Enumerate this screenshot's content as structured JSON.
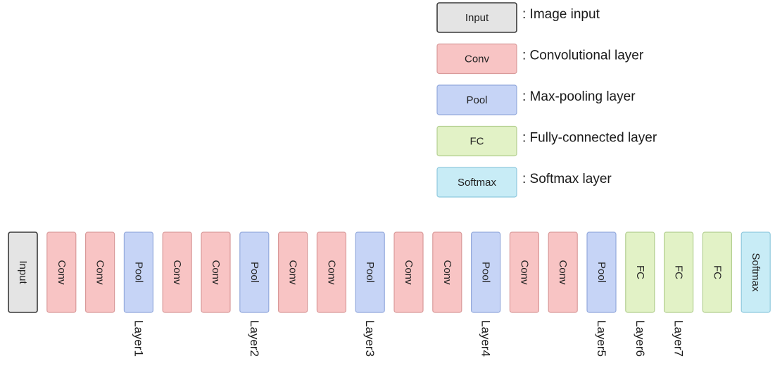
{
  "types": {
    "input": {
      "label": "Input",
      "fill": "#e4e4e4",
      "stroke": "#3a3a3a"
    },
    "conv": {
      "label": "Conv",
      "fill": "#f8c4c4",
      "stroke": "#d99a9a"
    },
    "pool": {
      "label": "Pool",
      "fill": "#c6d4f6",
      "stroke": "#93a9dc"
    },
    "fc": {
      "label": "FC",
      "fill": "#e2f2c6",
      "stroke": "#b3cf90"
    },
    "softmax": {
      "label": "Softmax",
      "fill": "#c8ecf6",
      "stroke": "#8fc9de"
    }
  },
  "legend": [
    {
      "type": "input",
      "description": ": Image input"
    },
    {
      "type": "conv",
      "description": ": Convolutional layer"
    },
    {
      "type": "pool",
      "description": ": Max-pooling layer"
    },
    {
      "type": "fc",
      "description": ": Fully-connected layer"
    },
    {
      "type": "softmax",
      "description": ": Softmax layer"
    }
  ],
  "sequence": [
    {
      "type": "input"
    },
    {
      "type": "conv"
    },
    {
      "type": "conv"
    },
    {
      "type": "pool",
      "layer_label": "Layer1"
    },
    {
      "type": "conv"
    },
    {
      "type": "conv"
    },
    {
      "type": "pool",
      "layer_label": "Layer2"
    },
    {
      "type": "conv"
    },
    {
      "type": "conv"
    },
    {
      "type": "pool",
      "layer_label": "Layer3"
    },
    {
      "type": "conv"
    },
    {
      "type": "conv"
    },
    {
      "type": "pool",
      "layer_label": "Layer4"
    },
    {
      "type": "conv"
    },
    {
      "type": "conv"
    },
    {
      "type": "pool",
      "layer_label": "Layer5"
    },
    {
      "type": "fc",
      "layer_label": "Layer6"
    },
    {
      "type": "fc",
      "layer_label": "Layer7"
    },
    {
      "type": "fc"
    },
    {
      "type": "softmax"
    }
  ]
}
